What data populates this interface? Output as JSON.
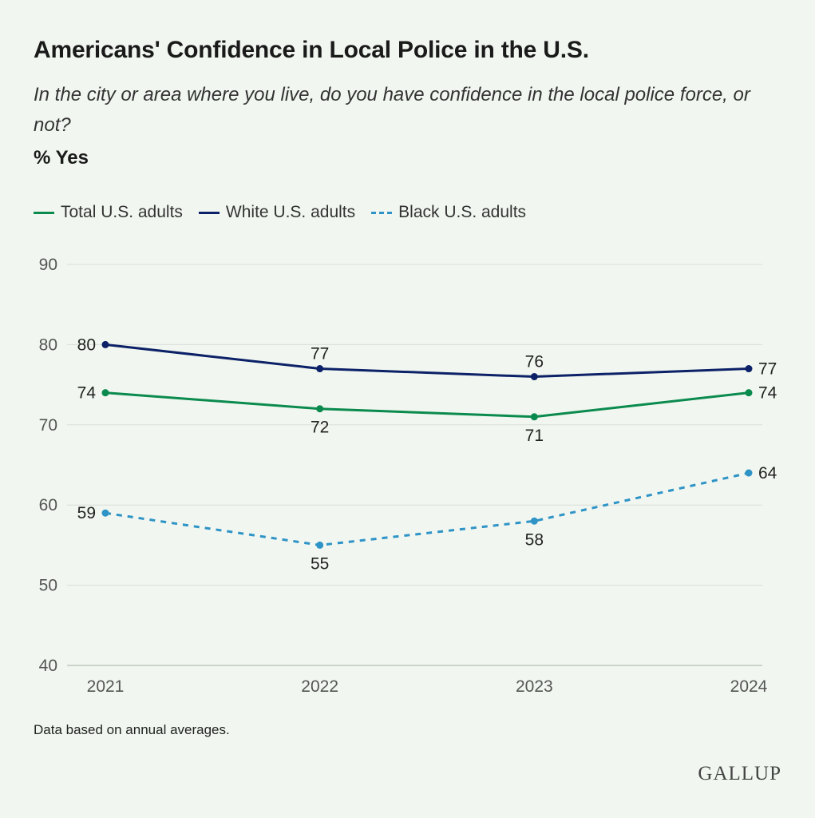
{
  "header": {
    "title": "Americans' Confidence in Local Police in the U.S.",
    "subtitle": "In the city or area where you live, do you have confidence in the local police force, or not?",
    "unit": "% Yes"
  },
  "chart_data": {
    "type": "line",
    "x": [
      "2021",
      "2022",
      "2023",
      "2024"
    ],
    "ylim": [
      40,
      90
    ],
    "yticks": [
      40,
      50,
      60,
      70,
      80,
      90
    ],
    "grid": true,
    "legend_position": "top-left",
    "series": [
      {
        "name": "Total U.S. adults",
        "color": "#0b8a4e",
        "style": "solid",
        "values": [
          74,
          72,
          71,
          74
        ]
      },
      {
        "name": "White U.S. adults",
        "color": "#0c2167",
        "style": "solid",
        "values": [
          80,
          77,
          76,
          77
        ]
      },
      {
        "name": "Black U.S. adults",
        "color": "#2e93c6",
        "style": "dashed",
        "values": [
          59,
          55,
          58,
          64
        ]
      }
    ]
  },
  "footer": {
    "note": "Data based on annual averages.",
    "logo": "GALLUP"
  }
}
